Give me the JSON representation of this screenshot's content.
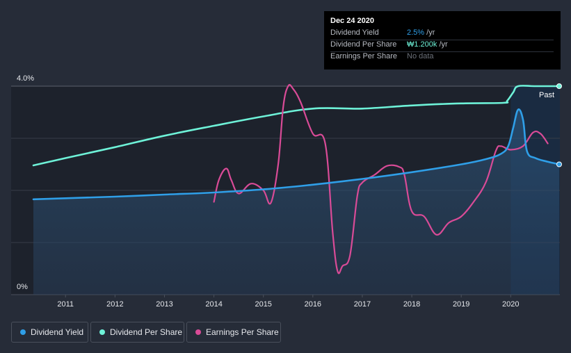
{
  "colors": {
    "background": "#262c38",
    "dividend_yield": "#2f9fe8",
    "dividend_per_share": "#6ef2d8",
    "earnings_per_share": "#d94b97",
    "grid": "#3a404c",
    "tooltip_bg": "#000000"
  },
  "tooltip": {
    "date": "Dec 24 2020",
    "rows": [
      {
        "label": "Dividend Yield",
        "value": "2.5%",
        "unit": " /yr"
      },
      {
        "label": "Dividend Per Share",
        "value": "₩1.200k",
        "unit": " /yr"
      },
      {
        "label": "Earnings Per Share",
        "value": "No data",
        "unit": ""
      }
    ]
  },
  "legend": [
    {
      "label": "Dividend Yield",
      "color": "#2f9fe8"
    },
    {
      "label": "Dividend Per Share",
      "color": "#6ef2d8"
    },
    {
      "label": "Earnings Per Share",
      "color": "#d94b97"
    }
  ],
  "chart_data": {
    "type": "line",
    "title": "",
    "xlabel": "",
    "ylabel": "",
    "past_label": "Past",
    "y_tick_labels": [
      "4.0%",
      "0%"
    ],
    "x_tick_labels": [
      "2011",
      "2012",
      "2013",
      "2014",
      "2015",
      "2016",
      "2017",
      "2018",
      "2019",
      "2020"
    ],
    "xlim": [
      2010.35,
      2020.98
    ],
    "ylim": [
      0,
      4.0
    ],
    "forecast_start": 2020.0,
    "series": [
      {
        "name": "Dividend Yield",
        "unit": "%",
        "filled": true,
        "x": [
          2010.35,
          2011.0,
          2012.0,
          2013.0,
          2014.0,
          2015.0,
          2016.0,
          2017.0,
          2018.0,
          2019.0,
          2019.5,
          2019.8,
          2019.95,
          2020.05,
          2020.15,
          2020.25,
          2020.33,
          2020.5,
          2020.75,
          2020.98
        ],
        "y": [
          1.83,
          1.85,
          1.88,
          1.92,
          1.96,
          2.02,
          2.11,
          2.22,
          2.35,
          2.5,
          2.6,
          2.7,
          2.85,
          3.2,
          3.55,
          3.35,
          2.75,
          2.62,
          2.55,
          2.5
        ]
      },
      {
        "name": "Dividend Per Share",
        "unit": "relative",
        "filled": false,
        "x": [
          2010.35,
          2011.0,
          2012.0,
          2013.0,
          2014.0,
          2015.0,
          2016.0,
          2017.0,
          2018.0,
          2019.0,
          2019.85,
          2019.93,
          2020.05,
          2020.15,
          2020.5,
          2020.98
        ],
        "y": [
          2.48,
          2.62,
          2.83,
          3.05,
          3.24,
          3.42,
          3.57,
          3.57,
          3.63,
          3.67,
          3.68,
          3.72,
          3.88,
          4.0,
          4.0,
          4.0
        ]
      },
      {
        "name": "Earnings Per Share",
        "unit": "relative",
        "filled": false,
        "x": [
          2014.0,
          2014.1,
          2014.25,
          2014.35,
          2014.5,
          2014.75,
          2015.0,
          2015.15,
          2015.3,
          2015.4,
          2015.5,
          2015.6,
          2015.75,
          2016.0,
          2016.25,
          2016.4,
          2016.5,
          2016.6,
          2016.75,
          2016.9,
          2017.0,
          2017.25,
          2017.5,
          2017.75,
          2017.85,
          2018.0,
          2018.25,
          2018.5,
          2018.75,
          2019.0,
          2019.25,
          2019.5,
          2019.7,
          2019.8,
          2020.0,
          2020.25,
          2020.45,
          2020.6,
          2020.75
        ],
        "y": [
          1.78,
          2.2,
          2.42,
          2.2,
          1.94,
          2.13,
          2.0,
          1.76,
          2.5,
          3.6,
          4.0,
          3.95,
          3.7,
          3.09,
          2.9,
          1.2,
          0.45,
          0.55,
          0.75,
          1.9,
          2.15,
          2.3,
          2.47,
          2.45,
          2.3,
          1.6,
          1.5,
          1.15,
          1.38,
          1.5,
          1.78,
          2.16,
          2.76,
          2.85,
          2.78,
          2.85,
          3.11,
          3.09,
          2.9
        ]
      }
    ]
  }
}
